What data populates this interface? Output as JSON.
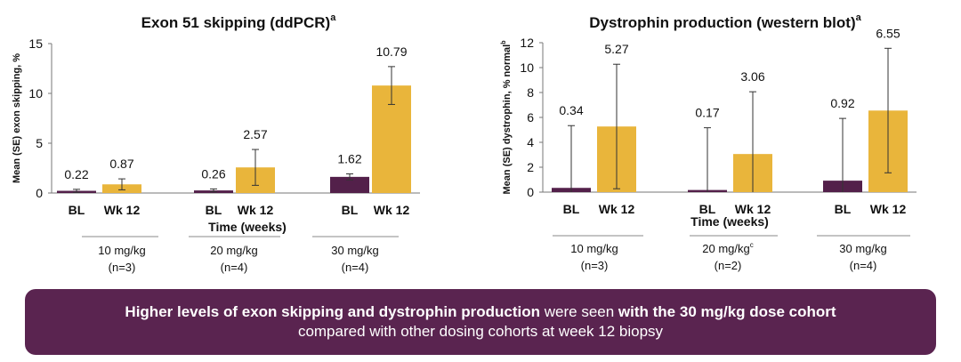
{
  "colors": {
    "bl": "#53204a",
    "wk12": "#e9b53b",
    "axis": "#777777",
    "banner": "#5a2450"
  },
  "chart_data": [
    {
      "type": "bar",
      "title": "Exon 51 skipping (ddPCR)",
      "title_sup": "a",
      "ylabel": "Mean (SE) exon skipping, %",
      "ylabel_sup": "",
      "xlabel": "Time (weeks)",
      "ylim": [
        0,
        15
      ],
      "yticks": [
        0,
        5,
        10,
        15
      ],
      "bar_labels": [
        "BL",
        "Wk 12"
      ],
      "groups": [
        {
          "dose": "10 mg/kg",
          "dose_sup": "",
          "n": "(n=3)",
          "values": [
            0.22,
            0.87
          ],
          "value_labels": [
            "0.22",
            "0.87"
          ],
          "errors": [
            0.15,
            0.55
          ]
        },
        {
          "dose": "20 mg/kg",
          "dose_sup": "",
          "n": "(n=4)",
          "values": [
            0.26,
            2.57
          ],
          "value_labels": [
            "0.26",
            "2.57"
          ],
          "errors": [
            0.15,
            1.8
          ]
        },
        {
          "dose": "30 mg/kg",
          "dose_sup": "",
          "n": "(n=4)",
          "values": [
            1.62,
            10.79
          ],
          "value_labels": [
            "1.62",
            "10.79"
          ],
          "errors": [
            0.3,
            1.9
          ]
        }
      ]
    },
    {
      "type": "bar",
      "title": "Dystrophin production (western blot)",
      "title_sup": "a",
      "ylabel": "Mean (SE) dystrophin, % normal",
      "ylabel_sup": "b",
      "xlabel": "Time (weeks)",
      "ylim": [
        0,
        12
      ],
      "yticks": [
        0,
        2,
        4,
        6,
        8,
        10,
        12
      ],
      "bar_labels": [
        "BL",
        "Wk 12"
      ],
      "groups": [
        {
          "dose": "10 mg/kg",
          "dose_sup": "",
          "n": "(n=3)",
          "values": [
            0.34,
            5.27
          ],
          "value_labels": [
            "0.34",
            "5.27"
          ],
          "errors": [
            5.0,
            5.0
          ]
        },
        {
          "dose": "20 mg/kg",
          "dose_sup": "c",
          "n": "(n=2)",
          "values": [
            0.17,
            3.06
          ],
          "value_labels": [
            "0.17",
            "3.06"
          ],
          "errors": [
            5.0,
            5.0
          ]
        },
        {
          "dose": "30 mg/kg",
          "dose_sup": "",
          "n": "(n=4)",
          "values": [
            0.92,
            6.55
          ],
          "value_labels": [
            "0.92",
            "6.55"
          ],
          "errors": [
            5.0,
            5.0
          ]
        }
      ]
    }
  ],
  "banner": {
    "line1_bold_a": "Higher levels of exon skipping and dystrophin production",
    "line1_normal": " were seen ",
    "line1_bold_b": "with the 30 mg/kg dose cohort",
    "line2": "compared with other dosing cohorts at week 12 biopsy"
  }
}
